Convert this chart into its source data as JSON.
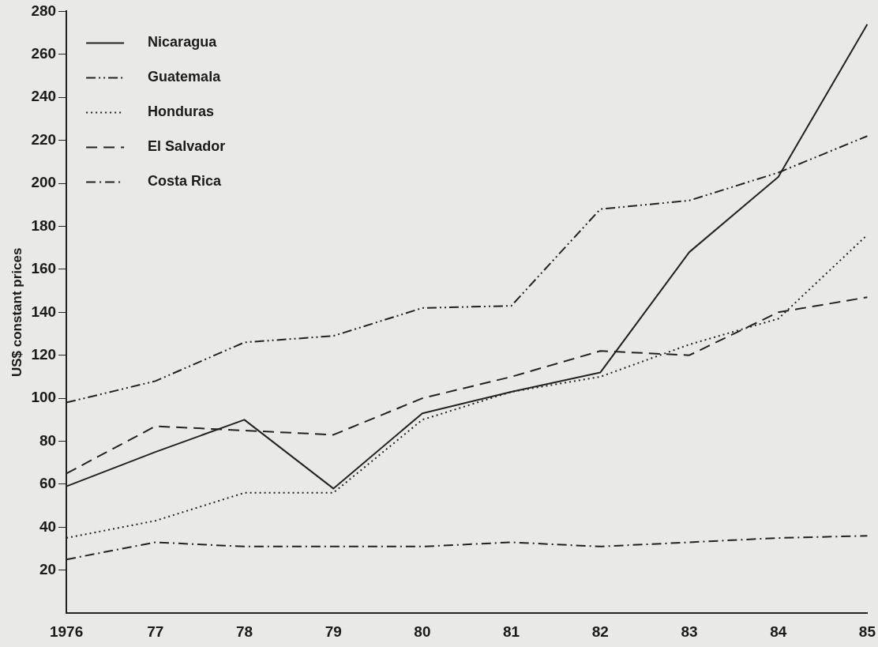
{
  "chart_data": {
    "type": "line",
    "ylabel": "US$ constant prices",
    "categories": [
      "1976",
      "77",
      "78",
      "79",
      "80",
      "81",
      "82",
      "83",
      "84",
      "85"
    ],
    "ylim": [
      0,
      280
    ],
    "yticks": [
      20,
      40,
      60,
      80,
      100,
      120,
      140,
      160,
      180,
      200,
      220,
      240,
      260,
      280
    ],
    "grid": false,
    "legend": "top left",
    "marker": "none",
    "series": [
      {
        "name": "Nicaragua",
        "color": "#222222",
        "line_style": "solid",
        "values": [
          59,
          75,
          90,
          58,
          93,
          103,
          112,
          168,
          203,
          274
        ]
      },
      {
        "name": "Guatemala",
        "color": "#222222",
        "line_style": "dashdotdot",
        "values": [
          98,
          108,
          126,
          129,
          142,
          143,
          188,
          192,
          205,
          222
        ]
      },
      {
        "name": "Honduras",
        "color": "#222222",
        "line_style": "dotted",
        "values": [
          35,
          43,
          56,
          56,
          90,
          103,
          110,
          125,
          137,
          176
        ]
      },
      {
        "name": "El Salvador",
        "color": "#222222",
        "line_style": "dashed",
        "values": [
          65,
          87,
          85,
          83,
          100,
          110,
          122,
          120,
          140,
          147
        ]
      },
      {
        "name": "Costa Rica",
        "color": "#222222",
        "line_style": "dashdot",
        "values": [
          25,
          33,
          31,
          31,
          31,
          33,
          31,
          33,
          35,
          36
        ]
      }
    ]
  }
}
